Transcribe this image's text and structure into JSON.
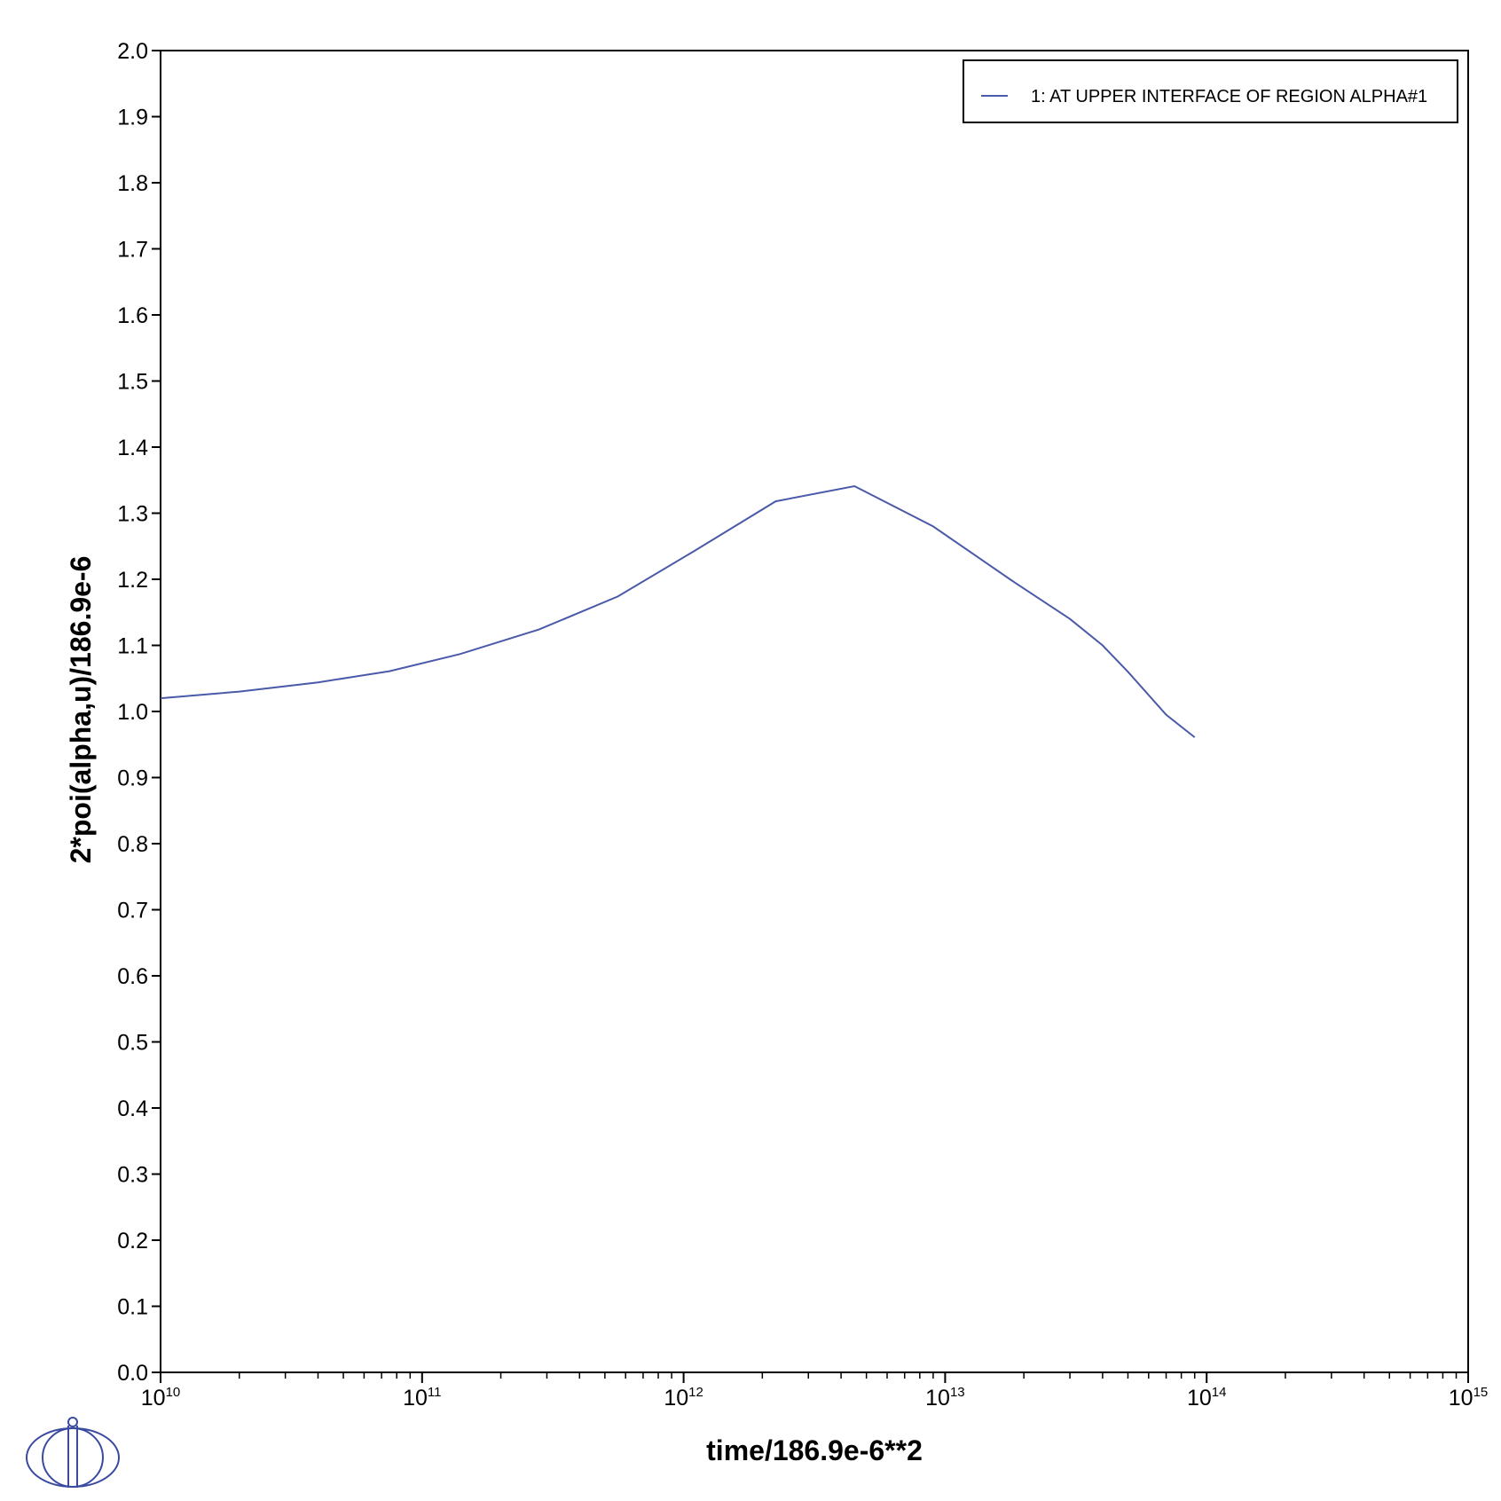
{
  "chart_data": {
    "type": "line",
    "xlabel": "time/186.9e-6**2",
    "ylabel": "2*poi(alpha,u)/186.9e-6",
    "x_scale": "log",
    "xlim": [
      10000000000,
      1000000000000000
    ],
    "ylim": [
      0.0,
      2.0
    ],
    "grid": false,
    "legend_position": "top-right",
    "x_tick_labels": [
      {
        "base": "10",
        "exp": "10"
      },
      {
        "base": "10",
        "exp": "11"
      },
      {
        "base": "10",
        "exp": "12"
      },
      {
        "base": "10",
        "exp": "13"
      },
      {
        "base": "10",
        "exp": "14"
      },
      {
        "base": "10",
        "exp": "15"
      }
    ],
    "y_ticks": [
      "0.0",
      "0.1",
      "0.2",
      "0.3",
      "0.4",
      "0.5",
      "0.6",
      "0.7",
      "0.8",
      "0.9",
      "1.0",
      "1.1",
      "1.2",
      "1.3",
      "1.4",
      "1.5",
      "1.6",
      "1.7",
      "1.8",
      "1.9",
      "2.0"
    ],
    "series": [
      {
        "name": "1:  AT UPPER INTERFACE OF REGION ALPHA#1",
        "color": "#4a5aa8",
        "x": [
          10000000000,
          20000000000,
          40000000000,
          75000000000,
          140000000000,
          280000000000,
          560000000000,
          1100000000000,
          2250000000000,
          4500000000000,
          9000000000000,
          18000000000000,
          30000000000000,
          40000000000000,
          50000000000000,
          70000000000000,
          90000000000000
        ],
        "y": [
          1.02,
          1.03,
          1.044,
          1.061,
          1.087,
          1.124,
          1.174,
          1.243,
          1.318,
          1.341,
          1.28,
          1.198,
          1.14,
          1.1,
          1.06,
          0.995,
          0.961
        ]
      }
    ]
  }
}
